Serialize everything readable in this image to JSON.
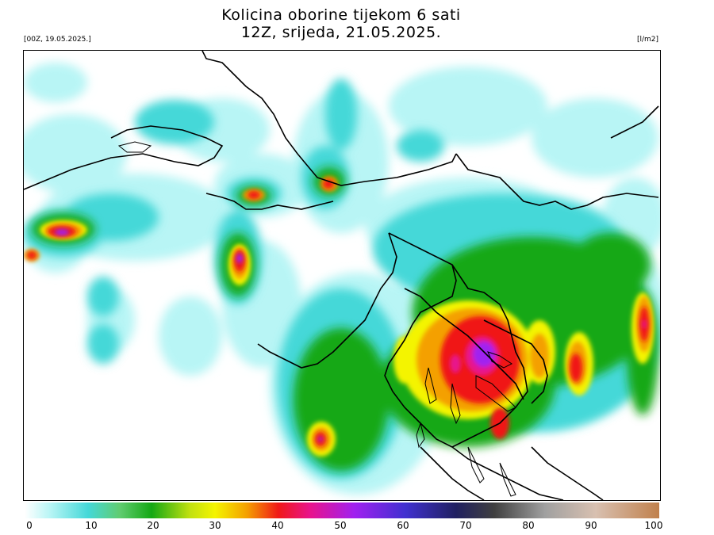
{
  "header": {
    "title_line1": "Kolicina oborine tijekom 6 sati",
    "title_line2": "12Z, srijeda, 21.05.2025.",
    "run_label": "[00Z, 19.05.2025.]",
    "unit_label": "[l/m2]"
  },
  "colorbar": {
    "min": 0,
    "max": 100,
    "tick_labels": [
      "0",
      "10",
      "20",
      "30",
      "40",
      "50",
      "60",
      "70",
      "80",
      "90",
      "100"
    ],
    "colors": [
      "#ffffff",
      "#b8f5f5",
      "#44d8d8",
      "#60cc70",
      "#14a814",
      "#c0e010",
      "#f4f400",
      "#f4a000",
      "#f01818",
      "#e8148c",
      "#a020f0",
      "#4030d0",
      "#202060",
      "#404040",
      "#a0a0a0",
      "#d8c0b0",
      "#c0804c"
    ]
  },
  "map": {
    "area": "Adriatic Sea and Croatia region",
    "variable": "6-hour accumulated precipitation"
  }
}
